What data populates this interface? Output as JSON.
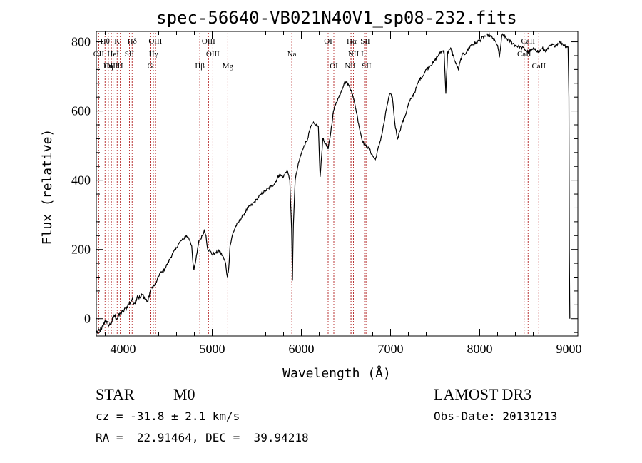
{
  "chart_data": {
    "type": "line",
    "title": "spec-56640-VB021N40V1_sp08-232.fits",
    "xlabel": "Wavelength (Å)",
    "ylabel": "Flux (relative)",
    "xlim": [
      3700,
      9100
    ],
    "ylim": [
      -50,
      830
    ],
    "x_ticks": [
      4000,
      5000,
      6000,
      7000,
      8000,
      9000
    ],
    "y_ticks": [
      0,
      200,
      400,
      600,
      800
    ],
    "series": [
      {
        "name": "flux",
        "points": [
          [
            3700,
            -40
          ],
          [
            3760,
            -30
          ],
          [
            3800,
            -5
          ],
          [
            3840,
            -20
          ],
          [
            3870,
            -12
          ],
          [
            3900,
            10
          ],
          [
            3930,
            0
          ],
          [
            3970,
            15
          ],
          [
            4000,
            20
          ],
          [
            4030,
            30
          ],
          [
            4060,
            40
          ],
          [
            4100,
            55
          ],
          [
            4130,
            45
          ],
          [
            4160,
            65
          ],
          [
            4190,
            60
          ],
          [
            4220,
            70
          ],
          [
            4250,
            55
          ],
          [
            4280,
            50
          ],
          [
            4300,
            75
          ],
          [
            4320,
            90
          ],
          [
            4350,
            95
          ],
          [
            4380,
            110
          ],
          [
            4410,
            130
          ],
          [
            4440,
            135
          ],
          [
            4470,
            145
          ],
          [
            4500,
            160
          ],
          [
            4530,
            175
          ],
          [
            4560,
            190
          ],
          [
            4590,
            200
          ],
          [
            4620,
            215
          ],
          [
            4650,
            225
          ],
          [
            4680,
            230
          ],
          [
            4700,
            240
          ],
          [
            4730,
            235
          ],
          [
            4750,
            225
          ],
          [
            4770,
            210
          ],
          [
            4785,
            160
          ],
          [
            4795,
            140
          ],
          [
            4810,
            160
          ],
          [
            4830,
            190
          ],
          [
            4850,
            225
          ],
          [
            4870,
            230
          ],
          [
            4890,
            240
          ],
          [
            4910,
            255
          ],
          [
            4930,
            240
          ],
          [
            4950,
            200
          ],
          [
            4980,
            195
          ],
          [
            5000,
            185
          ],
          [
            5040,
            190
          ],
          [
            5080,
            195
          ],
          [
            5120,
            180
          ],
          [
            5150,
            160
          ],
          [
            5170,
            120
          ],
          [
            5185,
            145
          ],
          [
            5200,
            210
          ],
          [
            5230,
            245
          ],
          [
            5260,
            265
          ],
          [
            5300,
            280
          ],
          [
            5350,
            300
          ],
          [
            5400,
            320
          ],
          [
            5450,
            330
          ],
          [
            5500,
            345
          ],
          [
            5550,
            360
          ],
          [
            5600,
            370
          ],
          [
            5650,
            380
          ],
          [
            5700,
            390
          ],
          [
            5750,
            415
          ],
          [
            5800,
            410
          ],
          [
            5840,
            430
          ],
          [
            5870,
            400
          ],
          [
            5890,
            260
          ],
          [
            5900,
            110
          ],
          [
            5910,
            270
          ],
          [
            5930,
            400
          ],
          [
            5960,
            440
          ],
          [
            5990,
            470
          ],
          [
            6030,
            500
          ],
          [
            6070,
            520
          ],
          [
            6100,
            550
          ],
          [
            6130,
            565
          ],
          [
            6160,
            560
          ],
          [
            6190,
            555
          ],
          [
            6210,
            410
          ],
          [
            6240,
            520
          ],
          [
            6270,
            505
          ],
          [
            6300,
            490
          ],
          [
            6330,
            540
          ],
          [
            6360,
            600
          ],
          [
            6390,
            625
          ],
          [
            6420,
            640
          ],
          [
            6450,
            660
          ],
          [
            6480,
            680
          ],
          [
            6500,
            685
          ],
          [
            6530,
            675
          ],
          [
            6560,
            660
          ],
          [
            6580,
            640
          ],
          [
            6600,
            620
          ],
          [
            6630,
            580
          ],
          [
            6660,
            540
          ],
          [
            6690,
            510
          ],
          [
            6720,
            500
          ],
          [
            6760,
            490
          ],
          [
            6800,
            470
          ],
          [
            6830,
            460
          ],
          [
            6870,
            500
          ],
          [
            6900,
            530
          ],
          [
            6930,
            570
          ],
          [
            6960,
            615
          ],
          [
            6990,
            650
          ],
          [
            7020,
            640
          ],
          [
            7050,
            560
          ],
          [
            7080,
            520
          ],
          [
            7100,
            540
          ],
          [
            7130,
            565
          ],
          [
            7170,
            590
          ],
          [
            7200,
            620
          ],
          [
            7240,
            640
          ],
          [
            7280,
            660
          ],
          [
            7320,
            690
          ],
          [
            7360,
            700
          ],
          [
            7400,
            720
          ],
          [
            7440,
            730
          ],
          [
            7480,
            740
          ],
          [
            7520,
            755
          ],
          [
            7560,
            770
          ],
          [
            7600,
            775
          ],
          [
            7620,
            650
          ],
          [
            7640,
            770
          ],
          [
            7680,
            780
          ],
          [
            7720,
            745
          ],
          [
            7760,
            720
          ],
          [
            7800,
            760
          ],
          [
            7850,
            770
          ],
          [
            7900,
            790
          ],
          [
            7950,
            795
          ],
          [
            8000,
            805
          ],
          [
            8050,
            815
          ],
          [
            8100,
            820
          ],
          [
            8150,
            810
          ],
          [
            8200,
            790
          ],
          [
            8220,
            755
          ],
          [
            8250,
            820
          ],
          [
            8300,
            810
          ],
          [
            8350,
            800
          ],
          [
            8400,
            790
          ],
          [
            8450,
            785
          ],
          [
            8500,
            780
          ],
          [
            8540,
            770
          ],
          [
            8570,
            775
          ],
          [
            8620,
            780
          ],
          [
            8660,
            770
          ],
          [
            8700,
            780
          ],
          [
            8750,
            775
          ],
          [
            8800,
            790
          ],
          [
            8850,
            790
          ],
          [
            8900,
            800
          ],
          [
            8950,
            790
          ],
          [
            8990,
            785
          ],
          [
            9000,
            640
          ],
          [
            9005,
            195
          ],
          [
            9010,
            0
          ]
        ]
      }
    ],
    "line_markers": [
      {
        "label": "Hθ",
        "wavelength": 3798,
        "row": 0
      },
      {
        "label": "K",
        "wavelength": 3934,
        "row": 0
      },
      {
        "label": "Hδ",
        "wavelength": 4102,
        "row": 0
      },
      {
        "label": "OIII",
        "wavelength": 4363,
        "row": 0
      },
      {
        "label": "OIII",
        "wavelength": 4959,
        "row": 0
      },
      {
        "label": "OI",
        "wavelength": 6300,
        "row": 0
      },
      {
        "label": "Hα",
        "wavelength": 6563,
        "row": 0
      },
      {
        "label": "SII",
        "wavelength": 6716,
        "row": 0
      },
      {
        "label": "CaII",
        "wavelength": 8542,
        "row": 0
      },
      {
        "label": "OII",
        "wavelength": 3727,
        "row": 1
      },
      {
        "label": "HeI",
        "wavelength": 3889,
        "row": 1
      },
      {
        "label": "SII",
        "wavelength": 4072,
        "row": 1
      },
      {
        "label": "Hγ",
        "wavelength": 4340,
        "row": 1
      },
      {
        "label": "OIII",
        "wavelength": 5007,
        "row": 1
      },
      {
        "label": "Na",
        "wavelength": 5893,
        "row": 1
      },
      {
        "label": "NII",
        "wavelength": 6584,
        "row": 1
      },
      {
        "label": "Li",
        "wavelength": 6708,
        "row": 1
      },
      {
        "label": "CaII",
        "wavelength": 8498,
        "row": 1
      },
      {
        "label": "OIII",
        "wavelength": 3869,
        "row": 2
      },
      {
        "label": "Hη",
        "wavelength": 3835,
        "row": 2
      },
      {
        "label": "H",
        "wavelength": 3969,
        "row": 2
      },
      {
        "label": "G",
        "wavelength": 4304,
        "row": 2
      },
      {
        "label": "Hβ",
        "wavelength": 4861,
        "row": 2
      },
      {
        "label": "Mg",
        "wavelength": 5175,
        "row": 2
      },
      {
        "label": "OI",
        "wavelength": 6364,
        "row": 2
      },
      {
        "label": "NII",
        "wavelength": 6548,
        "row": 2
      },
      {
        "label": "SII",
        "wavelength": 6731,
        "row": 2
      },
      {
        "label": "CaII",
        "wavelength": 8662,
        "row": 2
      }
    ]
  },
  "info": {
    "class_label": "STAR",
    "subclass": "M0",
    "survey": "LAMOST DR3",
    "cz_text": "cz = -31.8 ± 2.1 km/s",
    "obs_date": "Obs-Date: 20131213",
    "coords": "RA =  22.91464, DEC =  39.94218"
  }
}
